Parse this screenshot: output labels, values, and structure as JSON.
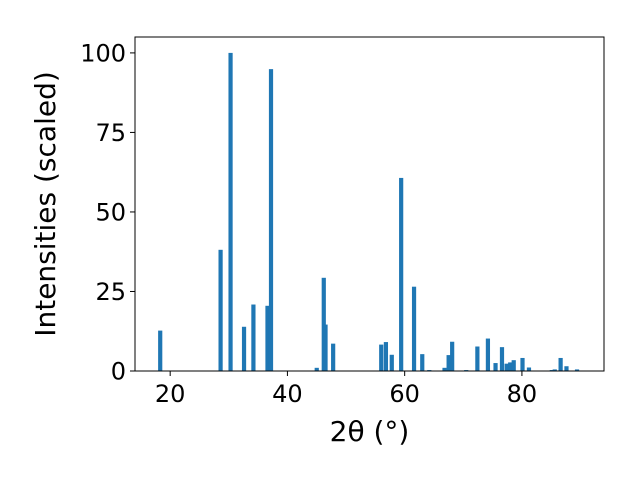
{
  "chart_data": {
    "type": "bar",
    "xlabel": "2θ (°)",
    "ylabel": "Intensities (scaled)",
    "xlim": [
      14,
      94
    ],
    "ylim": [
      0,
      105
    ],
    "xticks": [
      20,
      40,
      60,
      80
    ],
    "yticks": [
      0,
      25,
      50,
      75,
      100
    ],
    "bar_color": "#1f77b4",
    "grid": false,
    "x": [
      18.3,
      28.6,
      30.3,
      32.6,
      34.2,
      36.6,
      37.2,
      45.0,
      46.2,
      46.5,
      47.8,
      56.0,
      56.8,
      57.8,
      59.4,
      61.6,
      63.0,
      64.2,
      66.8,
      67.5,
      68.1,
      70.5,
      72.4,
      74.2,
      75.5,
      76.6,
      77.4,
      78.0,
      78.6,
      80.1,
      81.2,
      85.1,
      85.6,
      86.6,
      87.6,
      89.4
    ],
    "values": [
      12.7,
      38.1,
      100.0,
      13.9,
      20.9,
      20.5,
      94.9,
      1.0,
      29.3,
      14.6,
      8.6,
      8.3,
      9.1,
      5.1,
      60.7,
      26.5,
      5.3,
      0.3,
      1.0,
      5.0,
      9.2,
      0.3,
      7.7,
      10.2,
      2.5,
      7.5,
      2.3,
      2.7,
      3.4,
      4.1,
      1.1,
      0.3,
      0.5,
      4.1,
      1.5,
      0.5
    ]
  }
}
